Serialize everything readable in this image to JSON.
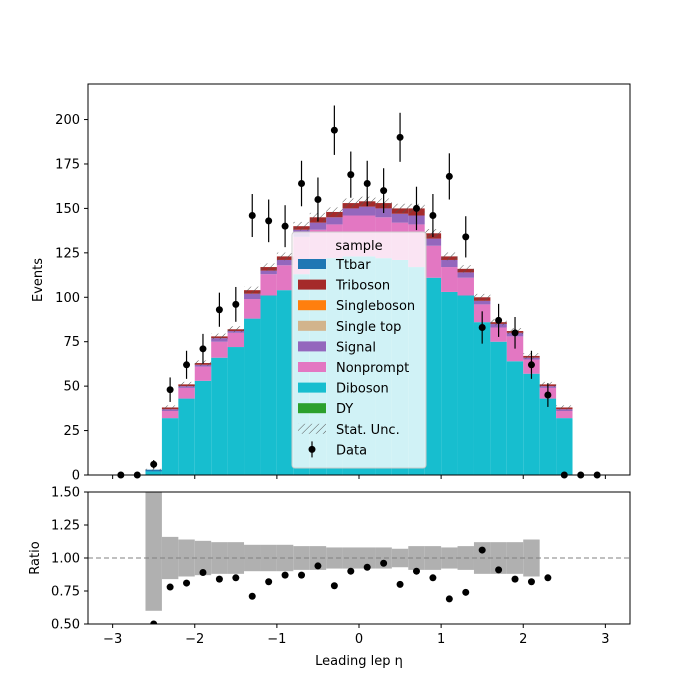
{
  "chart_data": {
    "type": "bar",
    "subtype": "stacked-histogram-with-ratio",
    "xlabel": "Leading lep η",
    "ylabel_top": "Events",
    "ylabel_bottom": "Ratio",
    "xlim": [
      -3.3,
      3.3
    ],
    "ylim_top": [
      0,
      220
    ],
    "ylim_bottom": [
      0.5,
      1.5
    ],
    "x_ticks": [
      -3,
      -2,
      -1,
      0,
      1,
      2,
      3
    ],
    "x_tick_labels": [
      "−3",
      "−2",
      "−1",
      "0",
      "1",
      "2",
      "3"
    ],
    "y_ticks_top": [
      0,
      25,
      50,
      75,
      100,
      125,
      150,
      175,
      200
    ],
    "y_ticks_bottom": [
      "0.50",
      "0.75",
      "1.00",
      "1.25",
      "1.50"
    ],
    "ratio_reference": 1.0,
    "bin_edges": [
      -2.6,
      -2.4,
      -2.2,
      -2.0,
      -1.8,
      -1.6,
      -1.4,
      -1.2,
      -1.0,
      -0.8,
      -0.6,
      -0.4,
      -0.2,
      0.0,
      0.2,
      0.4,
      0.6,
      0.8,
      1.0,
      1.2,
      1.4,
      1.6,
      1.8,
      2.0,
      2.2,
      2.4,
      2.6
    ],
    "legend": {
      "title": "sample",
      "location": "center",
      "entries": [
        {
          "label": "Ttbar",
          "color": "#1f77b4",
          "kind": "patch"
        },
        {
          "label": "Triboson",
          "color": "#a52a2a",
          "kind": "patch"
        },
        {
          "label": "Singleboson",
          "color": "#ff7f0e",
          "kind": "patch"
        },
        {
          "label": "Single top",
          "color": "#d2b48c",
          "kind": "patch"
        },
        {
          "label": "Signal",
          "color": "#9467bd",
          "kind": "patch"
        },
        {
          "label": "Nonprompt",
          "color": "#e377c2",
          "kind": "patch"
        },
        {
          "label": "Diboson",
          "color": "#17becf",
          "kind": "patch"
        },
        {
          "label": "DY",
          "color": "#2ca02c",
          "kind": "patch"
        },
        {
          "label": "Stat. Unc.",
          "color": "#666666",
          "kind": "hatch"
        },
        {
          "label": "Data",
          "color": "#000000",
          "kind": "errorbar"
        }
      ]
    },
    "stack_order": [
      "DY",
      "Diboson",
      "Nonprompt",
      "Signal",
      "Single top",
      "Singleboson",
      "Triboson",
      "Ttbar"
    ],
    "series": [
      {
        "name": "DY",
        "color": "#2ca02c",
        "values": [
          0,
          0,
          0,
          0,
          0,
          0,
          0,
          0,
          0,
          0,
          0,
          0,
          0,
          0,
          0,
          0,
          0,
          0,
          0,
          0,
          0,
          0,
          0,
          0,
          0,
          0
        ]
      },
      {
        "name": "Diboson",
        "color": "#17becf",
        "values": [
          2,
          32,
          43,
          53,
          66,
          72,
          88,
          101,
          104,
          113,
          117,
          122,
          123,
          123,
          122,
          121,
          117,
          111,
          103,
          101,
          86,
          75,
          64,
          57,
          43,
          32
        ]
      },
      {
        "name": "Nonprompt",
        "color": "#e377c2",
        "values": [
          0,
          4,
          6,
          8,
          9,
          8,
          11,
          12,
          14,
          21,
          21,
          19,
          23,
          23,
          23,
          21,
          24,
          18,
          14,
          10,
          10,
          8,
          14,
          8,
          6,
          4
        ]
      },
      {
        "name": "Signal",
        "color": "#9467bd",
        "values": [
          0,
          1,
          1,
          1,
          2,
          1,
          3,
          2,
          3,
          4,
          4,
          4,
          4,
          5,
          5,
          5,
          5,
          4,
          4,
          3,
          2,
          2,
          2,
          1,
          1,
          1
        ]
      },
      {
        "name": "Single top",
        "color": "#d2b48c",
        "values": [
          0,
          0,
          0,
          0,
          0,
          0,
          0,
          0,
          0,
          0,
          0,
          0,
          0,
          0,
          0,
          0,
          0,
          0,
          0,
          0,
          0,
          0,
          0,
          0,
          0,
          0
        ]
      },
      {
        "name": "Singleboson",
        "color": "#ff7f0e",
        "values": [
          0,
          0,
          0,
          0,
          0,
          0,
          0,
          0,
          0,
          0,
          0,
          0,
          0,
          0,
          0,
          0,
          0,
          0,
          0,
          0,
          0,
          0,
          0,
          0,
          0,
          0
        ]
      },
      {
        "name": "Triboson",
        "color": "#a52a2a",
        "values": [
          0,
          1,
          1,
          1,
          1,
          1,
          2,
          2,
          2,
          2,
          3,
          3,
          3,
          3,
          3,
          3,
          4,
          3,
          2,
          2,
          2,
          1,
          1,
          1,
          1,
          1
        ]
      },
      {
        "name": "Ttbar",
        "color": "#1f77b4",
        "values": [
          1,
          0,
          0,
          0,
          0,
          0,
          0,
          0,
          0,
          0,
          0,
          0,
          0,
          0,
          0,
          0,
          0,
          0,
          0,
          0,
          0,
          0,
          0,
          0,
          0,
          0
        ]
      }
    ],
    "stat_unc": [
      0.5,
      1.2,
      1.4,
      1.5,
      1.6,
      1.7,
      2.0,
      2.1,
      2.2,
      2.4,
      2.5,
      2.6,
      2.6,
      2.6,
      2.6,
      2.6,
      2.6,
      2.4,
      2.2,
      2.1,
      1.9,
      1.8,
      1.7,
      1.6,
      1.4,
      1.2
    ],
    "data": {
      "x": [
        -2.9,
        -2.7,
        -2.5,
        -2.3,
        -2.1,
        -1.9,
        -1.7,
        -1.5,
        -1.3,
        -1.1,
        -0.9,
        -0.7,
        -0.5,
        -0.3,
        -0.1,
        0.1,
        0.3,
        0.5,
        0.7,
        0.9,
        1.1,
        1.3,
        1.5,
        1.7,
        1.9,
        2.1,
        2.3,
        2.5,
        2.7,
        2.9
      ],
      "y": [
        0,
        0,
        6,
        48,
        62,
        71,
        93,
        96,
        146,
        143,
        140,
        164,
        155,
        194,
        169,
        164,
        160,
        190,
        150,
        146,
        168,
        134,
        83,
        87,
        80,
        62,
        45,
        0,
        0,
        0
      ],
      "yerr": [
        0,
        0,
        2.4,
        6.9,
        7.9,
        8.4,
        9.6,
        9.8,
        12.1,
        12.0,
        11.8,
        12.8,
        12.4,
        13.9,
        13.0,
        12.8,
        12.6,
        13.8,
        12.2,
        12.1,
        13.0,
        11.6,
        9.1,
        9.3,
        8.9,
        7.9,
        6.7,
        0,
        0,
        0
      ]
    },
    "ratio": {
      "x": [
        -2.5,
        -2.3,
        -2.1,
        -1.9,
        -1.7,
        -1.5,
        -1.3,
        -1.1,
        -0.9,
        -0.7,
        -0.5,
        -0.3,
        -0.1,
        0.1,
        0.3,
        0.5,
        0.7,
        0.9,
        1.1,
        1.3,
        1.5,
        1.7,
        1.9,
        2.1,
        2.3
      ],
      "y": [
        0.5,
        0.78,
        0.81,
        0.89,
        0.84,
        0.85,
        0.71,
        0.82,
        0.87,
        0.87,
        0.94,
        0.79,
        0.9,
        0.93,
        0.96,
        0.8,
        0.9,
        0.85,
        0.69,
        0.74,
        1.06,
        0.91,
        0.84,
        0.82,
        0.85
      ]
    },
    "ratio_band": [
      {
        "x0": -2.6,
        "x1": -2.4,
        "lo": 0.6,
        "hi": 1.5
      },
      {
        "x0": -2.4,
        "x1": -2.2,
        "lo": 0.84,
        "hi": 1.16
      },
      {
        "x0": -2.2,
        "x1": -2.0,
        "lo": 0.86,
        "hi": 1.14
      },
      {
        "x0": -2.0,
        "x1": -1.8,
        "lo": 0.87,
        "hi": 1.13
      },
      {
        "x0": -1.8,
        "x1": -1.6,
        "lo": 0.88,
        "hi": 1.12
      },
      {
        "x0": -1.6,
        "x1": -1.4,
        "lo": 0.88,
        "hi": 1.12
      },
      {
        "x0": -1.4,
        "x1": -1.2,
        "lo": 0.9,
        "hi": 1.1
      },
      {
        "x0": -1.2,
        "x1": -1.0,
        "lo": 0.9,
        "hi": 1.1
      },
      {
        "x0": -1.0,
        "x1": -0.8,
        "lo": 0.9,
        "hi": 1.1
      },
      {
        "x0": -0.8,
        "x1": -0.6,
        "lo": 0.91,
        "hi": 1.09
      },
      {
        "x0": -0.6,
        "x1": -0.4,
        "lo": 0.91,
        "hi": 1.09
      },
      {
        "x0": -0.4,
        "x1": -0.2,
        "lo": 0.92,
        "hi": 1.08
      },
      {
        "x0": -0.2,
        "x1": 0.0,
        "lo": 0.92,
        "hi": 1.08
      },
      {
        "x0": 0.0,
        "x1": 0.2,
        "lo": 0.92,
        "hi": 1.08
      },
      {
        "x0": 0.2,
        "x1": 0.4,
        "lo": 0.92,
        "hi": 1.08
      },
      {
        "x0": 0.4,
        "x1": 0.6,
        "lo": 0.93,
        "hi": 1.07
      },
      {
        "x0": 0.6,
        "x1": 0.8,
        "lo": 0.91,
        "hi": 1.09
      },
      {
        "x0": 0.8,
        "x1": 1.0,
        "lo": 0.91,
        "hi": 1.09
      },
      {
        "x0": 1.0,
        "x1": 1.2,
        "lo": 0.92,
        "hi": 1.08
      },
      {
        "x0": 1.2,
        "x1": 1.4,
        "lo": 0.91,
        "hi": 1.09
      },
      {
        "x0": 1.4,
        "x1": 1.6,
        "lo": 0.88,
        "hi": 1.12
      },
      {
        "x0": 1.6,
        "x1": 1.8,
        "lo": 0.88,
        "hi": 1.12
      },
      {
        "x0": 1.8,
        "x1": 2.0,
        "lo": 0.88,
        "hi": 1.12
      },
      {
        "x0": 2.0,
        "x1": 2.2,
        "lo": 0.86,
        "hi": 1.14
      }
    ]
  }
}
